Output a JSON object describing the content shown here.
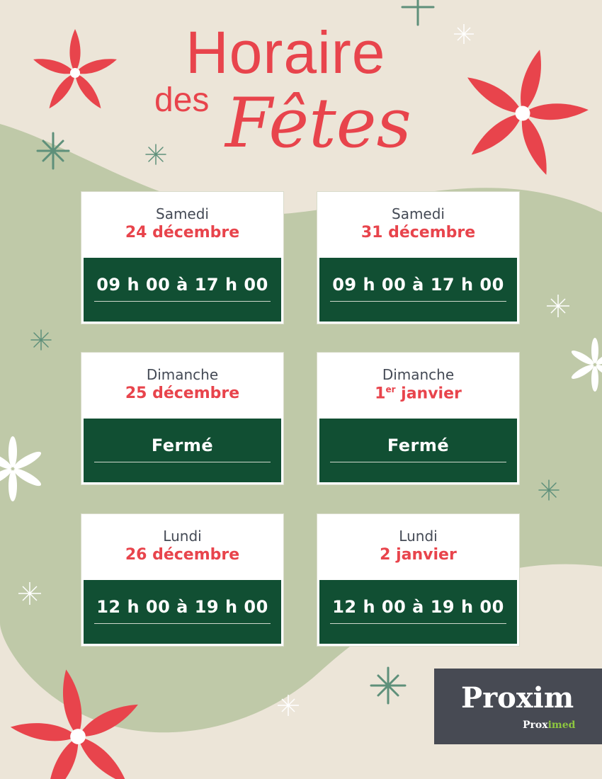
{
  "title": {
    "line1": "Horaire",
    "line2": "des",
    "line3": "Fêtes"
  },
  "cards": [
    {
      "day": "Samedi",
      "date": "24 décembre",
      "hours": "09 h 00 à 17 h 00"
    },
    {
      "day": "Samedi",
      "date": "31 décembre",
      "hours": "09 h 00 à 17 h 00"
    },
    {
      "day": "Dimanche",
      "date": "25 décembre",
      "hours": "Fermé"
    },
    {
      "day": "Dimanche",
      "date_num": "1",
      "date_sup": "er",
      "date_rest": " janvier",
      "hours": "Fermé"
    },
    {
      "day": "Lundi",
      "date": "26 décembre",
      "hours": "12 h 00 à 19 h 00"
    },
    {
      "day": "Lundi",
      "date": "2 janvier",
      "hours": "12 h 00 à 19 h 00"
    }
  ],
  "logo": {
    "main": "Proxim",
    "sub_a": "Prox",
    "sub_b": "imed"
  },
  "colors": {
    "background": "#ece5d8",
    "green_shape": "#bfc9a8",
    "accent_red": "#e8444c",
    "card_green": "#114f33",
    "logo_bg": "#474a53",
    "logo_green": "#8dc63f"
  }
}
